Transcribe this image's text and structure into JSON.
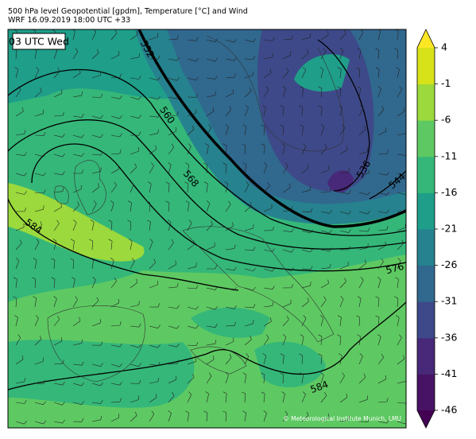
{
  "header": {
    "title": "500 hPa level Geopotential [gpdm], Temperature [°C] and Wind",
    "subtitle": "WRF 16.09.2019 18:00 UTC +33"
  },
  "map": {
    "time_label": "03 UTC Wed",
    "contour_labels": [
      552,
      560,
      568,
      584,
      536,
      544,
      576,
      584
    ],
    "copyright": "© Meteorological Institute Munich, LMU"
  },
  "colorbar": {
    "ticks": [
      4,
      -1,
      -6,
      -11,
      -16,
      -21,
      -26,
      -31,
      -36,
      -41,
      -46
    ],
    "lim": [
      -46,
      4
    ],
    "colors": [
      "#440154",
      "#471365",
      "#482878",
      "#3e4989",
      "#31688e",
      "#26828e",
      "#1f9e89",
      "#35b779",
      "#5ec962",
      "#9bd93c",
      "#d8e219",
      "#fde725"
    ]
  }
}
